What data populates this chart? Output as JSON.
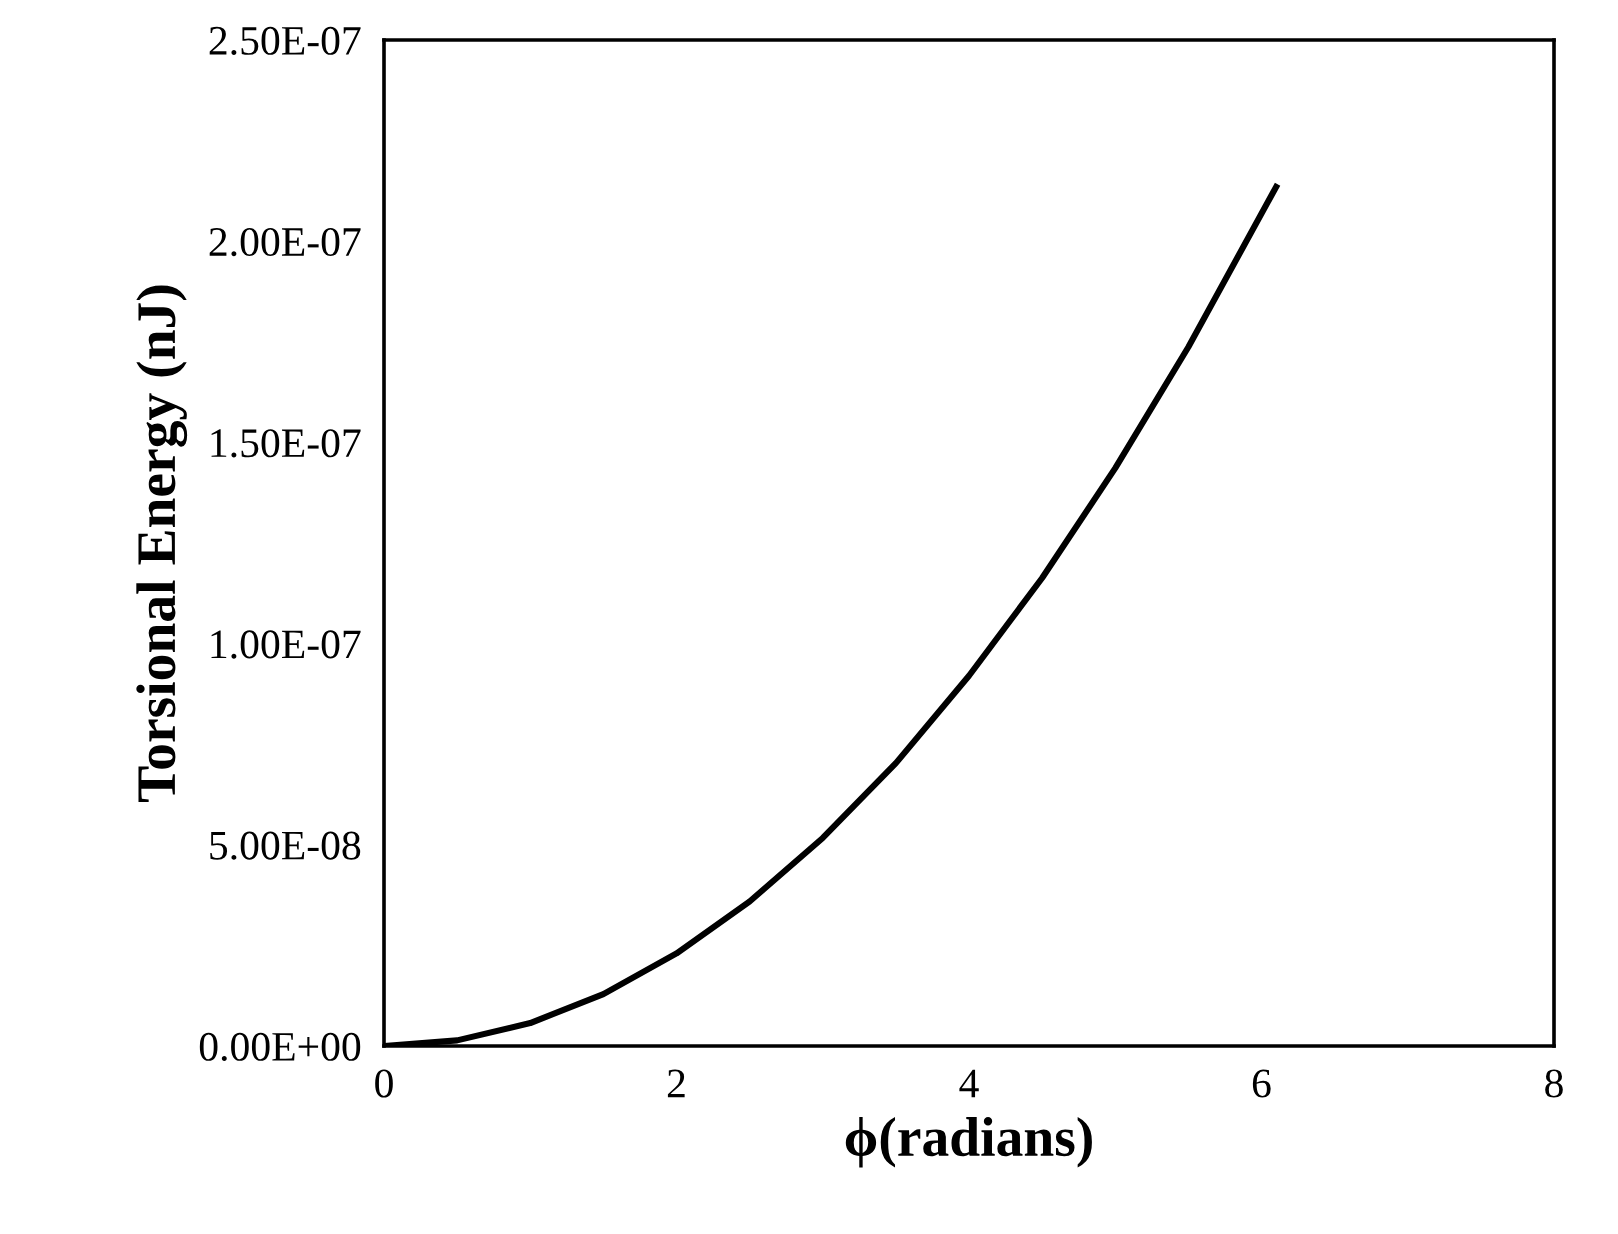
{
  "chart_data": {
    "type": "line",
    "xlabel": "ϕ(radians)",
    "ylabel": "Torsional Energy (nJ)",
    "x": [
      0,
      0.5,
      1,
      1.5,
      2,
      2.5,
      3,
      3.5,
      4,
      4.5,
      5,
      5.5,
      6.1
    ],
    "series": [
      {
        "color": "#000000",
        "values": [
          0,
          1.4e-09,
          5.7e-09,
          1.29e-08,
          2.3e-08,
          3.59e-08,
          5.17e-08,
          7.03e-08,
          9.2e-08,
          1.163e-07,
          1.436e-07,
          1.737e-07,
          2.135e-07
        ]
      }
    ],
    "xlim": [
      0,
      8
    ],
    "xticks": [
      0,
      2,
      4,
      6,
      8
    ],
    "ylim": [
      0,
      2.5e-07
    ],
    "yticks": [
      {
        "value": 0,
        "label": "0.00E+00"
      },
      {
        "value": 5e-08,
        "label": "5.00E-08"
      },
      {
        "value": 1e-07,
        "label": "1.00E-07"
      },
      {
        "value": 1.5e-07,
        "label": "1.50E-07"
      },
      {
        "value": 2e-07,
        "label": "2.00E-07"
      },
      {
        "value": 2.5e-07,
        "label": "2.50E-07"
      }
    ],
    "grid": false,
    "legend": false,
    "marker": "none",
    "line_style": "solid"
  }
}
